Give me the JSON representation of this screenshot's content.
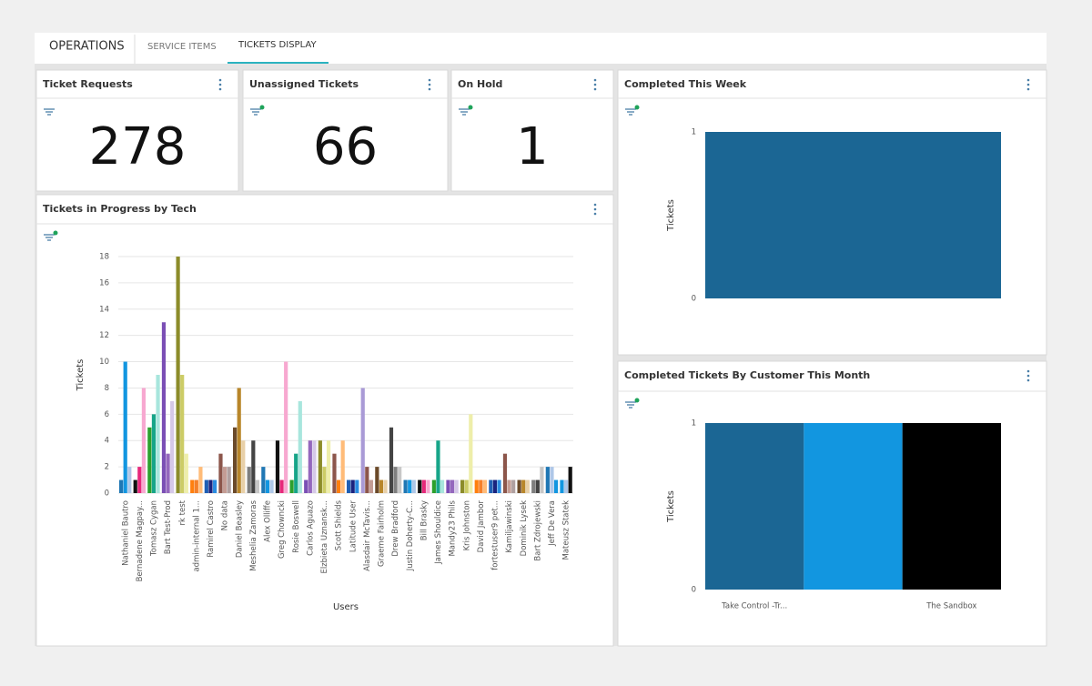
{
  "tabs": [
    "OPERATIONS",
    "SERVICE ITEMS",
    "TICKETS DISPLAY"
  ],
  "stats": [
    {
      "title": "Ticket Requests",
      "value": 278
    },
    {
      "title": "Unassigned Tickets",
      "value": 66
    },
    {
      "title": "On Hold",
      "value": 1
    }
  ],
  "progress_chart": {
    "type": "bar",
    "title": "Tickets in Progress by Tech",
    "x_label": "Users",
    "y_label": "Tickets",
    "ylim": [
      0,
      18
    ],
    "yticks": [
      0,
      2,
      4,
      6,
      8,
      10,
      12,
      14,
      16,
      18
    ],
    "grid": true,
    "groups": [
      {
        "label": "Nathaniel Bautro",
        "values": [
          1,
          10,
          2
        ],
        "colors": [
          "#1f77b4",
          "#1296e0",
          "#aec7e8"
        ]
      },
      {
        "label": "Bernadene Magpay...",
        "values": [
          1,
          2,
          8
        ],
        "colors": [
          "#111111",
          "#e6287a",
          "#f7a8d0"
        ]
      },
      {
        "label": "Tomasz Cygan",
        "values": [
          5,
          6,
          9
        ],
        "colors": [
          "#2ca02c",
          "#17a589",
          "#a8e6dd"
        ]
      },
      {
        "label": "Bart Test-Prod",
        "values": [
          13,
          3,
          7
        ],
        "colors": [
          "#7b4fb5",
          "#9467bd",
          "#d5c8e8"
        ]
      },
      {
        "label": "rk test",
        "values": [
          18,
          9,
          3
        ],
        "colors": [
          "#8c8c2a",
          "#cccc66",
          "#eeeeaa"
        ]
      },
      {
        "label": "admin-internal 1...",
        "values": [
          1,
          1,
          2
        ],
        "colors": [
          "#ff7f0e",
          "#f5802a",
          "#ffbb78"
        ]
      },
      {
        "label": "Ramirel Castro",
        "values": [
          1,
          1,
          1
        ],
        "colors": [
          "#1f5fb4",
          "#1a237e",
          "#2b8ce0"
        ]
      },
      {
        "label": "No data",
        "values": [
          3,
          2,
          2
        ],
        "colors": [
          "#8c564b",
          "#c49c94",
          "#b0a0a0"
        ]
      },
      {
        "label": "Daniel Beasley",
        "values": [
          5,
          8,
          4
        ],
        "colors": [
          "#6b4a2a",
          "#b8862a",
          "#e8d0a8"
        ]
      },
      {
        "label": "Meshelia Zamoras",
        "values": [
          2,
          4,
          1
        ],
        "colors": [
          "#7f7f7f",
          "#444444",
          "#c7c7c7"
        ]
      },
      {
        "label": "Alex Olliffe",
        "values": [
          2,
          1,
          1
        ],
        "colors": [
          "#1f77b4",
          "#1296e0",
          "#aec7e8"
        ]
      },
      {
        "label": "Greg Chowncki",
        "values": [
          4,
          1,
          10
        ],
        "colors": [
          "#111111",
          "#e6287a",
          "#f7a8d0"
        ]
      },
      {
        "label": "Rosie Boswell",
        "values": [
          1,
          3,
          7
        ],
        "colors": [
          "#2ca02c",
          "#17a589",
          "#a8e6dd"
        ]
      },
      {
        "label": "Carlos Aguazo",
        "values": [
          1,
          4,
          4
        ],
        "colors": [
          "#7b4fb5",
          "#9467bd",
          "#d5c8e8"
        ]
      },
      {
        "label": "Elzbieta Uznansk...",
        "values": [
          4,
          2,
          4
        ],
        "colors": [
          "#8c8c2a",
          "#cccc66",
          "#eeeeaa"
        ]
      },
      {
        "label": "Scott Shields",
        "values": [
          3,
          1,
          4
        ],
        "colors": [
          "#8c564b",
          "#ff7f0e",
          "#ffbb78"
        ]
      },
      {
        "label": "Latitude User",
        "values": [
          1,
          1,
          1
        ],
        "colors": [
          "#1f5fb4",
          "#1a237e",
          "#2b8ce0"
        ]
      },
      {
        "label": "Alasdair McTavis...",
        "values": [
          8,
          2,
          1
        ],
        "colors": [
          "#a99ad6",
          "#8c564b",
          "#c49c94"
        ]
      },
      {
        "label": "Graeme Fairholm",
        "values": [
          2,
          1,
          1
        ],
        "colors": [
          "#6b4a2a",
          "#b8862a",
          "#e8d0a8"
        ]
      },
      {
        "label": "Drew Bradford",
        "values": [
          5,
          2,
          2
        ],
        "colors": [
          "#444444",
          "#7f7f7f",
          "#c7c7c7"
        ]
      },
      {
        "label": "Justin Doherty-C...",
        "values": [
          1,
          1,
          1
        ],
        "colors": [
          "#1f77b4",
          "#1296e0",
          "#aec7e8"
        ]
      },
      {
        "label": "Bill Brasky",
        "values": [
          1,
          1,
          1
        ],
        "colors": [
          "#111111",
          "#e6287a",
          "#f7a8d0"
        ]
      },
      {
        "label": "James Shouldice",
        "values": [
          1,
          4,
          1
        ],
        "colors": [
          "#2ca02c",
          "#17a589",
          "#a8e6dd"
        ]
      },
      {
        "label": "Mandy23 Phils",
        "values": [
          1,
          1,
          1
        ],
        "colors": [
          "#7b4fb5",
          "#9467bd",
          "#d5c8e8"
        ]
      },
      {
        "label": "Kris Johnston",
        "values": [
          1,
          1,
          6
        ],
        "colors": [
          "#8c8c2a",
          "#cccc66",
          "#eeeeaa"
        ]
      },
      {
        "label": "David Jambor",
        "values": [
          1,
          1,
          1
        ],
        "colors": [
          "#ff7f0e",
          "#f5802a",
          "#ffbb78"
        ]
      },
      {
        "label": "fortestuser9 pet...",
        "values": [
          1,
          1,
          1
        ],
        "colors": [
          "#1f5fb4",
          "#1a237e",
          "#2b8ce0"
        ]
      },
      {
        "label": "Kamiljawinski",
        "values": [
          3,
          1,
          1
        ],
        "colors": [
          "#8c564b",
          "#c49c94",
          "#b0a0a0"
        ]
      },
      {
        "label": "Dominik Lysek",
        "values": [
          1,
          1,
          1
        ],
        "colors": [
          "#6b4a2a",
          "#b8862a",
          "#e8d0a8"
        ]
      },
      {
        "label": "Bart Zdrojewski",
        "values": [
          1,
          1,
          2
        ],
        "colors": [
          "#7f7f7f",
          "#444444",
          "#c7c7c7"
        ]
      },
      {
        "label": "Jeff De Vera",
        "values": [
          2,
          2,
          1
        ],
        "colors": [
          "#1f77b4",
          "#aec7e8",
          "#1296e0"
        ]
      },
      {
        "label": "Mateusz Statek",
        "values": [
          1,
          1,
          2
        ],
        "colors": [
          "#1296e0",
          "#aec7e8",
          "#111111"
        ]
      }
    ]
  },
  "week_chart": {
    "type": "bar",
    "title": "Completed This Week",
    "y_label": "Tickets",
    "categories": [
      null
    ],
    "values": [
      1
    ],
    "colors": [
      "#1b6694"
    ],
    "ylim": [
      0,
      1
    ],
    "yticks": [
      0,
      1
    ]
  },
  "customer_chart": {
    "type": "bar",
    "title": "Completed Tickets By Customer This Month",
    "y_label": "Tickets",
    "categories": [
      "Take Control -Tr...",
      null,
      "The Sandbox"
    ],
    "values": [
      1,
      1,
      1
    ],
    "colors": [
      "#1b6694",
      "#1296e0",
      "#000000"
    ],
    "ylim": [
      0,
      1
    ],
    "yticks": [
      0,
      1
    ]
  }
}
